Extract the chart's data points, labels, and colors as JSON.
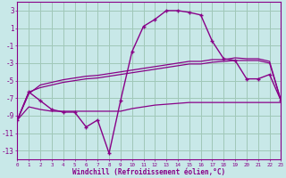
{
  "xlabel": "Windchill (Refroidissement éolien,°C)",
  "background_color": "#c8e8e8",
  "grid_color": "#a0c8b8",
  "line_color": "#880088",
  "hours": [
    0,
    1,
    2,
    3,
    4,
    5,
    6,
    7,
    8,
    9,
    10,
    11,
    12,
    13,
    14,
    15,
    16,
    17,
    18,
    19,
    20,
    21,
    22,
    23
  ],
  "temp": [
    -9.5,
    -6.3,
    -7.3,
    -8.3,
    -8.6,
    -8.6,
    -10.3,
    -9.5,
    -13.3,
    -7.3,
    -1.7,
    1.2,
    2.0,
    3.0,
    3.0,
    2.8,
    2.5,
    -0.5,
    -2.5,
    -2.7,
    -4.8,
    -4.8,
    -4.3,
    -7.3
  ],
  "line_bot": [
    -9.5,
    -8.0,
    -8.3,
    -8.5,
    -8.5,
    -8.5,
    -8.5,
    -8.5,
    -8.5,
    -8.5,
    -8.2,
    -8.0,
    -7.8,
    -7.7,
    -7.6,
    -7.5,
    -7.5,
    -7.5,
    -7.5,
    -7.5,
    -7.5,
    -7.5,
    -7.5,
    -7.5
  ],
  "line_mid": [
    -9.5,
    -6.3,
    -5.8,
    -5.5,
    -5.2,
    -5.0,
    -4.8,
    -4.7,
    -4.5,
    -4.3,
    -4.1,
    -3.9,
    -3.7,
    -3.5,
    -3.3,
    -3.1,
    -3.1,
    -2.9,
    -2.8,
    -2.7,
    -2.7,
    -2.7,
    -3.0,
    -7.3
  ],
  "line_hi": [
    -9.5,
    -6.5,
    -5.5,
    -5.2,
    -4.9,
    -4.7,
    -4.5,
    -4.4,
    -4.2,
    -4.0,
    -3.8,
    -3.6,
    -3.4,
    -3.2,
    -3.0,
    -2.8,
    -2.8,
    -2.6,
    -2.6,
    -2.4,
    -2.5,
    -2.5,
    -2.8,
    -7.3
  ],
  "ylim": [
    -14,
    4
  ],
  "yticks": [
    3,
    1,
    -1,
    -3,
    -5,
    -7,
    -9,
    -11,
    -13
  ],
  "xlim": [
    0,
    23
  ]
}
